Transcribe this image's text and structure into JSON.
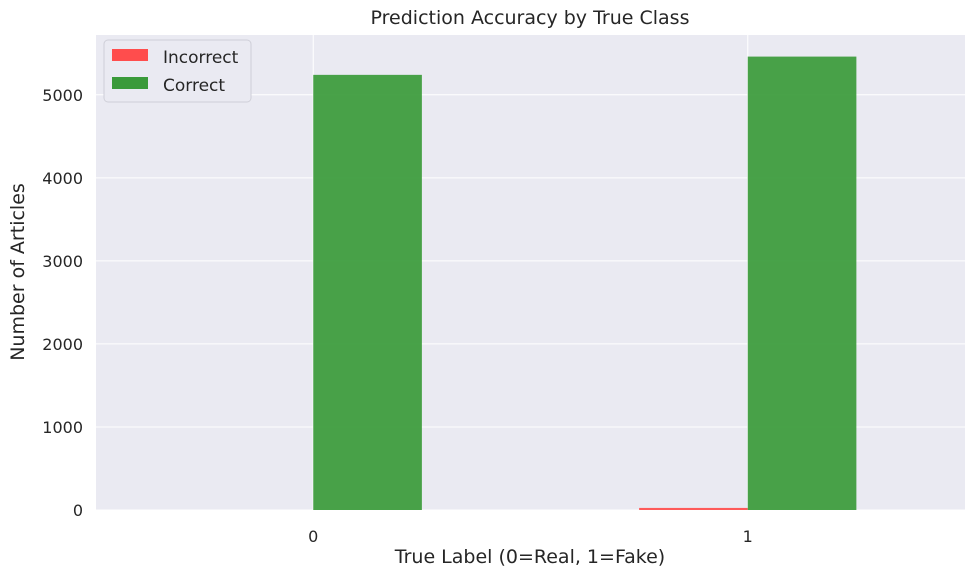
{
  "chart_data": {
    "type": "bar",
    "title": "Prediction Accuracy by True Class",
    "xlabel": "True Label (0=Real, 1=Fake)",
    "ylabel": "Number of Articles",
    "categories": [
      "0",
      "1"
    ],
    "series": [
      {
        "name": "Incorrect",
        "color": "#ff4d4d",
        "values": [
          0,
          25
        ]
      },
      {
        "name": "Correct",
        "color": "#3a9a3a",
        "values": [
          5240,
          5460
        ]
      }
    ],
    "ylim": [
      0,
      5720
    ],
    "yticks": [
      0,
      1000,
      2000,
      3000,
      4000,
      5000
    ],
    "grid": true,
    "legend_position": "top-left",
    "background": "#eaeaf2"
  }
}
